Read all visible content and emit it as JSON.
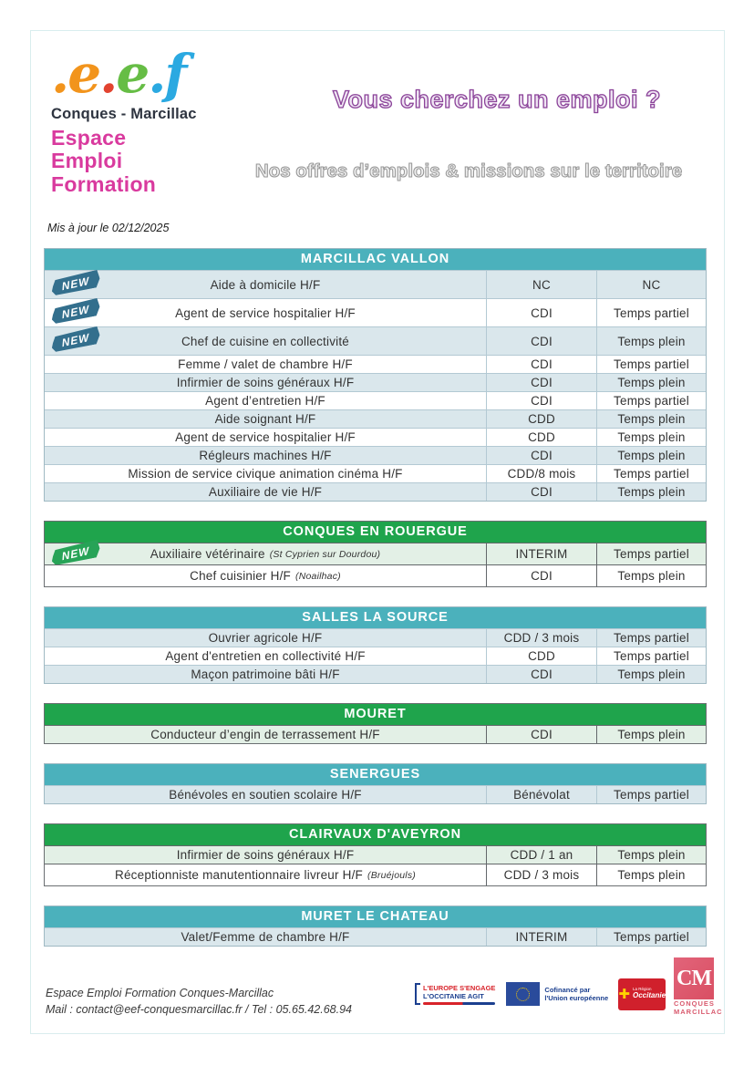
{
  "page": {
    "title": "Vous cherchez un emploi ?",
    "subtitle": "Nos offres d’emplois & missions sur le territoire",
    "updated": "Mis à jour le 02/12/2025"
  },
  "logo": {
    "script_dot1": ".",
    "script_e1": "e",
    "script_dot2": ".",
    "script_e2": "e",
    "script_dot3": ".",
    "script_f": "f",
    "area": "Conques - Marcillac",
    "line1": "Espace",
    "line2": "Emploi",
    "line3": "Formation"
  },
  "colors": {
    "teal_header": "#4BB1BC",
    "green_header": "#1FA44C",
    "teal_row": "#DAE7EC",
    "green_row": "#E3F0E6",
    "new_teal": "#336F8D",
    "new_green": "#27A357",
    "title_purple": "#8B4399",
    "subtitle_gray": "#969696",
    "brand_pink": "#D93A9E",
    "logo_orange": "#F2941C",
    "logo_green": "#66BD45",
    "logo_blue": "#2BA9E1",
    "logo_red": "#E2432F"
  },
  "new_badge_label": "NEW",
  "sections": [
    {
      "title": "MARCILLAC VALLON",
      "theme": "teal",
      "rows": [
        {
          "job": "Aide à domicile H/F",
          "contract": "NC",
          "time": "NC",
          "new": true
        },
        {
          "job": "Agent de service hospitalier H/F",
          "contract": "CDI",
          "time": "Temps partiel",
          "new": true
        },
        {
          "job": "Chef de cuisine en collectivité",
          "contract": "CDI",
          "time": "Temps plein",
          "new": true
        },
        {
          "job": "Femme / valet de chambre H/F",
          "contract": "CDI",
          "time": "Temps partiel"
        },
        {
          "job": "Infirmier de soins généraux H/F",
          "contract": "CDI",
          "time": "Temps plein"
        },
        {
          "job": "Agent d’entretien H/F",
          "contract": "CDI",
          "time": "Temps partiel"
        },
        {
          "job": "Aide soignant H/F",
          "contract": "CDD",
          "time": "Temps plein"
        },
        {
          "job": "Agent de service hospitalier H/F",
          "contract": "CDD",
          "time": "Temps plein"
        },
        {
          "job": "Régleurs machines H/F",
          "contract": "CDI",
          "time": "Temps plein"
        },
        {
          "job": "Mission de service civique animation cinéma H/F",
          "contract": "CDD/8 mois",
          "time": "Temps partiel"
        },
        {
          "job": "Auxiliaire de vie H/F",
          "contract": "CDI",
          "time": "Temps plein"
        }
      ]
    },
    {
      "title": "CONQUES EN ROUERGUE",
      "theme": "green",
      "rows": [
        {
          "job": "Auxiliaire vétérinaire",
          "note": "(St Cyprien sur Dourdou)",
          "contract": "INTERIM",
          "time": "Temps partiel",
          "new": true
        },
        {
          "job": "Chef cuisinier H/F",
          "note": "(Noailhac)",
          "contract": "CDI",
          "time": "Temps plein"
        }
      ]
    },
    {
      "title": "SALLES LA SOURCE",
      "theme": "teal",
      "rows": [
        {
          "job": "Ouvrier agricole H/F",
          "contract": "CDD / 3 mois",
          "time": "Temps partiel"
        },
        {
          "job": "Agent d'entretien en collectivité H/F",
          "contract": "CDD",
          "time": "Temps partiel"
        },
        {
          "job": "Maçon patrimoine bâti H/F",
          "contract": "CDI",
          "time": "Temps plein"
        }
      ]
    },
    {
      "title": "MOURET",
      "theme": "green",
      "rows": [
        {
          "job": "Conducteur d’engin de terrassement H/F",
          "contract": "CDI",
          "time": "Temps plein"
        }
      ]
    },
    {
      "title": "SENERGUES",
      "theme": "teal",
      "rows": [
        {
          "job": "Bénévoles en soutien scolaire H/F",
          "contract": "Bénévolat",
          "time": "Temps partiel"
        }
      ]
    },
    {
      "title": "CLAIRVAUX D'AVEYRON",
      "theme": "green",
      "rows": [
        {
          "job": "Infirmier de soins généraux H/F",
          "contract": "CDD / 1 an",
          "time": "Temps plein"
        },
        {
          "job": "Réceptionniste manutentionnaire livreur H/F",
          "note": "(Bruéjouls)",
          "contract": "CDD / 3 mois",
          "time": "Temps plein"
        }
      ]
    },
    {
      "title": "MURET LE CHATEAU",
      "theme": "teal",
      "rows": [
        {
          "job": "Valet/Femme de chambre H/F",
          "contract": "INTERIM",
          "time": "Temps partiel"
        }
      ]
    }
  ],
  "footer": {
    "org": "Espace Emploi Formation Conques-Marcillac",
    "contact": "Mail : contact@eef-conquesmarcillac.fr / Tel : 05.65.42.68.94",
    "logos": {
      "europe_line1": "L'EUROPE S'ENGAGE",
      "europe_line2": "L'OCCITANIE AGIT",
      "eu_text": "Cofinancé par l'Union européenne",
      "occitanie_region": "La Région",
      "occitanie_name": "Occitanie",
      "cm_initials": "CM",
      "cm_line1": "CONQUES",
      "cm_line2": "MARCILLAC"
    }
  }
}
